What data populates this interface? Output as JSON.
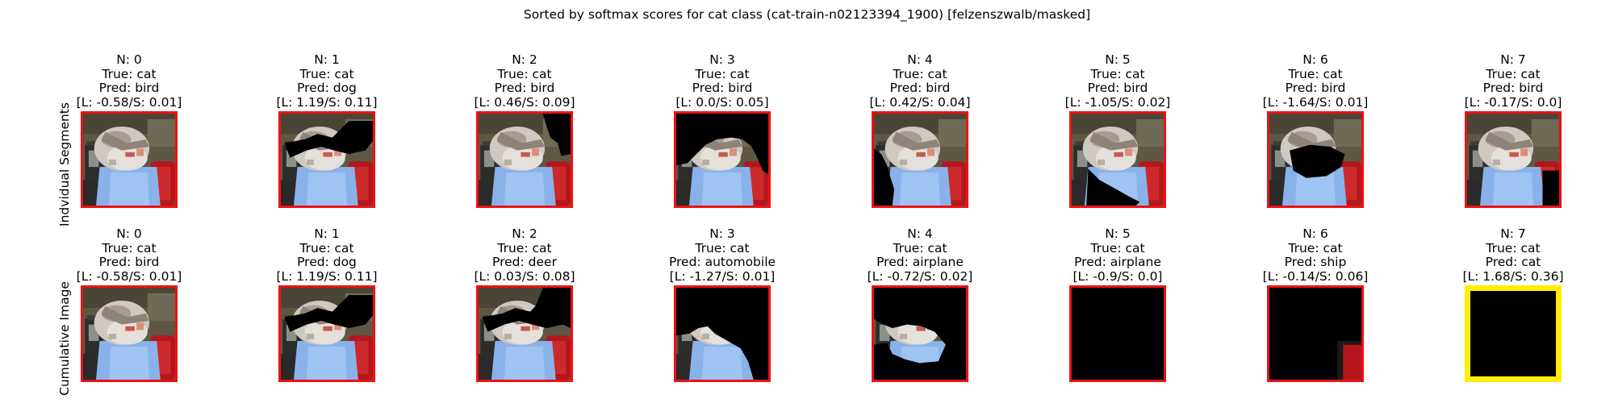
{
  "title": "Sorted by softmax scores for cat class (cat-train-n02123394_1900) [felzenszwalb/masked]",
  "colors": {
    "frame": "#ee1111",
    "highlight": "#ffee00",
    "mask": "#000000"
  },
  "rows": [
    {
      "label": "Indvidual Segments",
      "cells": [
        {
          "n": "N: 0",
          "true": "True: cat",
          "pred": "Pred: bird",
          "score": "[L: -0.58/S: 0.01]",
          "mask": "none",
          "highlight": false
        },
        {
          "n": "N: 1",
          "true": "True: cat",
          "pred": "Pred: dog",
          "score": "[L: 1.19/S: 0.11]",
          "mask": "seg1",
          "highlight": false
        },
        {
          "n": "N: 2",
          "true": "True: cat",
          "pred": "Pred: bird",
          "score": "[L: 0.46/S: 0.09]",
          "mask": "seg2",
          "highlight": false
        },
        {
          "n": "N: 3",
          "true": "True: cat",
          "pred": "Pred: bird",
          "score": "[L: 0.0/S: 0.05]",
          "mask": "seg3",
          "highlight": false
        },
        {
          "n": "N: 4",
          "true": "True: cat",
          "pred": "Pred: bird",
          "score": "[L: 0.42/S: 0.04]",
          "mask": "seg4",
          "highlight": false
        },
        {
          "n": "N: 5",
          "true": "True: cat",
          "pred": "Pred: bird",
          "score": "[L: -1.05/S: 0.02]",
          "mask": "seg5",
          "highlight": false
        },
        {
          "n": "N: 6",
          "true": "True: cat",
          "pred": "Pred: bird",
          "score": "[L: -1.64/S: 0.01]",
          "mask": "seg6",
          "highlight": false
        },
        {
          "n": "N: 7",
          "true": "True: cat",
          "pred": "Pred: bird",
          "score": "[L: -0.17/S: 0.0]",
          "mask": "seg7",
          "highlight": false
        }
      ]
    },
    {
      "label": "Cumulative Image",
      "cells": [
        {
          "n": "N: 0",
          "true": "True: cat",
          "pred": "Pred: bird",
          "score": "[L: -0.58/S: 0.01]",
          "mask": "none",
          "highlight": false
        },
        {
          "n": "N: 1",
          "true": "True: cat",
          "pred": "Pred: dog",
          "score": "[L: 1.19/S: 0.11]",
          "mask": "cum1",
          "highlight": false
        },
        {
          "n": "N: 2",
          "true": "True: cat",
          "pred": "Pred: deer",
          "score": "[L: 0.03/S: 0.08]",
          "mask": "cum2",
          "highlight": false
        },
        {
          "n": "N: 3",
          "true": "True: cat",
          "pred": "Pred: automobile",
          "score": "[L: -1.27/S: 0.01]",
          "mask": "cum3",
          "highlight": false
        },
        {
          "n": "N: 4",
          "true": "True: cat",
          "pred": "Pred: airplane",
          "score": "[L: -0.72/S: 0.02]",
          "mask": "cum4",
          "highlight": false
        },
        {
          "n": "N: 5",
          "true": "True: cat",
          "pred": "Pred: airplane",
          "score": "[L: -0.9/S: 0.0]",
          "mask": "cum5",
          "highlight": false
        },
        {
          "n": "N: 6",
          "true": "True: cat",
          "pred": "Pred: ship",
          "score": "[L: -0.14/S: 0.06]",
          "mask": "cum6",
          "highlight": false
        },
        {
          "n": "N: 7",
          "true": "True: cat",
          "pred": "Pred: cat",
          "score": "[L: 1.68/S: 0.36]",
          "mask": "cum7",
          "highlight": true
        }
      ]
    }
  ]
}
